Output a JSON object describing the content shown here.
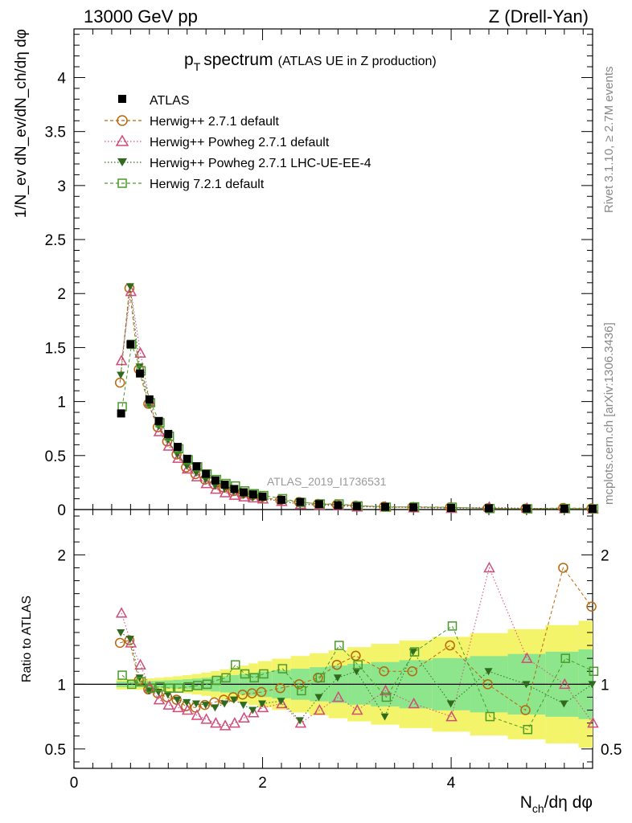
{
  "header": {
    "left": "13000 GeV pp",
    "right": "Z (Drell-Yan)"
  },
  "side_text": {
    "rivet": "Rivet 3.1.10, ≥ 2.7M events",
    "mcplots": "mcplots.cern.ch [arXiv:1306.3436]"
  },
  "watermark": "ATLAS_2019_I1736531",
  "chart_data": {
    "type": "scatter",
    "title": "p",
    "title_sub": "T",
    "title_main": "spectrum",
    "title_suffix": "(ATLAS UE in Z production)",
    "ylabel": "1/N_ev dN_ev/dN_ch/dη dφ",
    "ratio_ylabel": "Ratio to ATLAS",
    "xlabel_main": "N",
    "xlabel_sub": "ch",
    "xlabel_rest": "/dη dφ",
    "xlim": [
      0,
      5.5
    ],
    "ylim": [
      0,
      4.45
    ],
    "ratio_ylim": [
      0.35,
      2.35
    ],
    "x_ticks": [
      "0",
      "2",
      "4"
    ],
    "y_ticks": [
      "0",
      "0.5",
      "1",
      "1.5",
      "2",
      "2.5",
      "3",
      "3.5",
      "4"
    ],
    "ratio_ticks": [
      "0.5",
      "1",
      "2"
    ],
    "x": [
      0.5,
      0.6,
      0.7,
      0.8,
      0.9,
      1.0,
      1.1,
      1.2,
      1.3,
      1.4,
      1.5,
      1.6,
      1.7,
      1.8,
      1.9,
      2.0,
      2.2,
      2.4,
      2.6,
      2.8,
      3.0,
      3.3,
      3.6,
      4.0,
      4.4,
      4.8,
      5.2,
      5.5
    ],
    "data": [
      0.89,
      1.53,
      1.26,
      1.02,
      0.82,
      0.7,
      0.58,
      0.47,
      0.4,
      0.33,
      0.27,
      0.23,
      0.19,
      0.16,
      0.14,
      0.12,
      0.09,
      0.07,
      0.05,
      0.04,
      0.03,
      0.025,
      0.02,
      0.015,
      0.012,
      0.01,
      0.008,
      0.007
    ],
    "series": [
      {
        "name": "ATLAS",
        "color": "#000000"
      },
      {
        "name": "Herwig++ 2.7.1 default",
        "color": "#b8660b",
        "ratio": [
          1.32,
          1.34,
          1.03,
          0.96,
          0.93,
          0.9,
          0.88,
          0.83,
          0.82,
          0.84,
          0.86,
          0.88,
          0.9,
          0.92,
          0.93,
          0.94,
          0.97,
          1.0,
          1.05,
          1.15,
          1.22,
          1.1,
          1.1,
          1.3,
          1.0,
          0.8,
          1.9,
          1.6
        ]
      },
      {
        "name": "Herwig++ Powheg 2.7.1 default",
        "color": "#d04a7a",
        "ratio": [
          1.55,
          1.32,
          1.15,
          0.98,
          0.88,
          0.84,
          0.82,
          0.8,
          0.76,
          0.73,
          0.7,
          0.68,
          0.7,
          0.74,
          0.78,
          0.82,
          0.85,
          0.7,
          0.8,
          0.9,
          0.8,
          0.95,
          0.85,
          0.75,
          1.9,
          1.2,
          1.0,
          0.7
        ]
      },
      {
        "name": "Herwig++ Powheg 2.7.1 LHC-UE-EE-4",
        "color": "#2f6b1f",
        "ratio": [
          1.4,
          1.35,
          1.05,
          0.95,
          0.94,
          0.92,
          0.88,
          0.86,
          0.85,
          0.84,
          0.82,
          0.85,
          0.88,
          0.84,
          0.8,
          0.85,
          0.87,
          0.72,
          0.9,
          1.05,
          1.1,
          0.75,
          1.25,
          0.85,
          1.1,
          1.0,
          0.85,
          1.0
        ]
      },
      {
        "name": "Herwig 7.2.1 default",
        "color": "#4a9a2a",
        "ratio": [
          1.07,
          1.0,
          1.02,
          0.97,
          0.98,
          0.97,
          0.97,
          0.98,
          0.99,
          1.0,
          1.03,
          1.05,
          1.15,
          1.08,
          1.05,
          1.08,
          1.12,
          0.95,
          1.05,
          1.3,
          1.15,
          0.9,
          1.25,
          1.45,
          0.75,
          0.65,
          1.2,
          1.1
        ]
      }
    ],
    "legend_position": "top-left"
  }
}
